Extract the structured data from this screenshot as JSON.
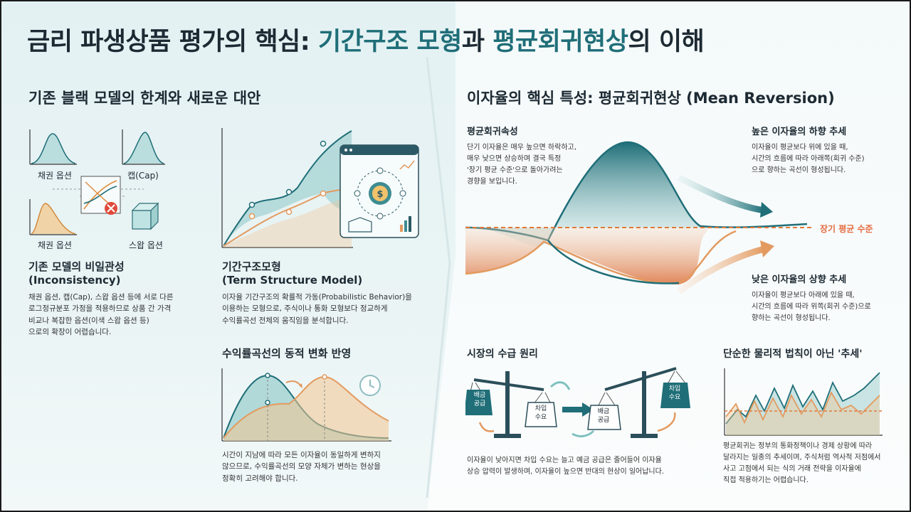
{
  "title": {
    "part1": "금리 파생상품 평가의 핵심: ",
    "hl1": "기간구조 모형",
    "part2": "과 ",
    "hl2": "평균회귀현상",
    "part3": "의 이해"
  },
  "left": {
    "heading": "기존 블랙 모델의 한계와 새로운 대안",
    "icons": {
      "bond": "채권 옵션",
      "cap": "캡(Cap)",
      "bond2": "채권 옵션",
      "swap": "스왑 옵션"
    },
    "inconsistency": {
      "title": "기존 모델의 비일관성\n(Inconsistency)",
      "body": "채권 옵션, 캡(Cap), 스왑 옵션 등에 서로 다른\n로그정규분포 가정을 적용하므로 상품 간 가격\n비교나 복잡한 옵션(이색 스왑 옵션 등)\n으로의 확장이 어렵습니다."
    },
    "term_model": {
      "title": "기간구조모형\n(Term Structure Model)",
      "body": "이자율 기간구조의 확률적 가동(Probabilistic Behavior)을\n이용하는 모형으로, 주식이나 통화 모형보다 정교하게\n수익률곡선 전체의 움직임을 분석합니다."
    },
    "dynamic": {
      "title": "수익률곡선의 동적 변화 반영",
      "body": "시간이 지남에 따라 모든 이자율이 동일하게 변하지\n않으므로, 수익률곡선의 모양 자체가 변하는 현상을\n정확히 고려해야 합니다."
    }
  },
  "right": {
    "heading": "이자율의 핵심 특성: 평균회귀현상 (Mean Reversion)",
    "mr": {
      "title": "평균회귀속성",
      "body": "단기 이자율은 매우 높으면 하락하고,\n매우 낮으면 상승하며 결국 특정\n'장기 평균 수준'으로 돌아가려는\n경향을 보입니다."
    },
    "high": {
      "title": "높은 이자율의 하향 추세",
      "body": "이자율이 평균보다 위에 있을 때,\n시간의 흐름에 따라 아래쪽(회귀 수준)\n으로 향하는 곡선이 형성됩니다."
    },
    "long_avg": "장기 평균 수준",
    "low": {
      "title": "낮은 이자율의 상향 추세",
      "body": "이자율이 평균보다 아래에 있을 때,\n시간의 흐름에 따라 위쪽(회귀 수준)으로\n향하는 곡선이 형성됩니다."
    },
    "market": {
      "title": "시장의 수급 원리",
      "body": "이자율이 낮아지면 차입 수요는 늘고 예금 공급은 줄어들어 이자율\n상승 압력이 발생하며, 이자율이 높으면 반대의 현상이 일어납니다.",
      "scale1_left": "배금\n공급",
      "scale1_right": "차입\n수요",
      "scale2_left": "배금\n공급",
      "scale2_right": "차입\n수요"
    },
    "trend": {
      "title": "단순한 물리적 법칙이 아닌 '추세'",
      "body": "평균회귀는 정부의 통화정책이나 경제 상황에 따라\n달라지는 일종의 추세이며, 주식처럼 역사적 저점에서\n사고 고점에서 되는 식의 거래 전략을 이자율에\n직접 적용하기는 어렵습니다."
    }
  },
  "colors": {
    "teal": "#1f6e78",
    "orange": "#e39a5f",
    "accent": "#e46b3f"
  }
}
